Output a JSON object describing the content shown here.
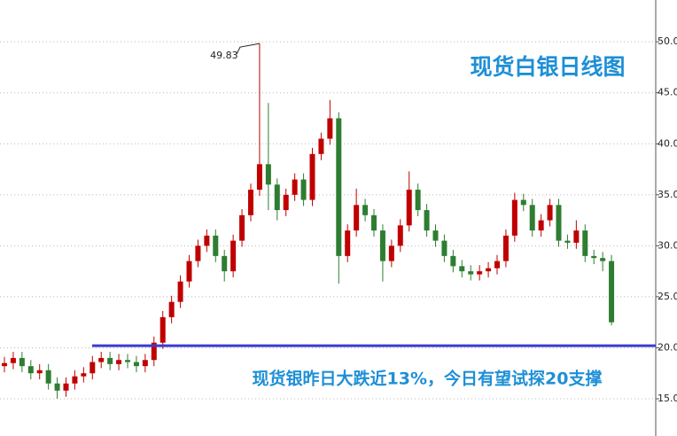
{
  "chart_data": {
    "type": "candlestick",
    "title": "现货白银日线图",
    "subtitle": "现货银昨日大跌近13%，今日有望试探20支撑",
    "peak_label": "49.83",
    "up_color": "#c00000",
    "down_color": "#2e7d32",
    "grid": true,
    "ylim": [
      11.35,
      54.1
    ],
    "yticks": [
      {
        "value": 15,
        "label": "15.0"
      },
      {
        "value": 20,
        "label": "20.0"
      },
      {
        "value": 25,
        "label": "25.0"
      },
      {
        "value": 30,
        "label": "30.0"
      },
      {
        "value": 35,
        "label": "35.0"
      },
      {
        "value": 40,
        "label": "40.0"
      },
      {
        "value": 45,
        "label": "45.0"
      },
      {
        "value": 50,
        "label": "50.0"
      }
    ],
    "support_line": {
      "value": 20.2,
      "color": "#3a3ad0"
    },
    "open": [
      18.2,
      18.5,
      19,
      18.2,
      17.5,
      17.8,
      16.5,
      15.8,
      16.5,
      17.2,
      17.5,
      18.6,
      19,
      18.4,
      18.8,
      18.6,
      18.2,
      18.8,
      20.5,
      23,
      24.5,
      26.5,
      28.5,
      30,
      31,
      29,
      27.5,
      30.5,
      33,
      35.5,
      38,
      36,
      33.5,
      35,
      36.5,
      34.5,
      39,
      40.5,
      42.5,
      29,
      31.5,
      34,
      33,
      31.5,
      28.5,
      30,
      32,
      35.5,
      33.5,
      31.5,
      30.5,
      29,
      28,
      27.5,
      27.2,
      27.5,
      27.8,
      28.5,
      31,
      34.5,
      34,
      31.5,
      32.5,
      34,
      30.5,
      30.3,
      31.5,
      29,
      28.8,
      28.5
    ],
    "high": [
      19.1,
      19.6,
      19.6,
      18.8,
      18.4,
      18.4,
      17.1,
      17.1,
      17.8,
      18.1,
      19.2,
      19.6,
      19.6,
      19.4,
      19.4,
      19.2,
      19.4,
      21.1,
      23.6,
      25.1,
      27.1,
      29.1,
      30.6,
      31.6,
      31.6,
      29.6,
      31.1,
      33.6,
      36.1,
      49.83,
      44.0,
      36.6,
      35.6,
      37.1,
      37.1,
      39.6,
      41.1,
      44.3,
      43.1,
      32.1,
      35.6,
      34.6,
      33.6,
      32.1,
      30.6,
      32.6,
      37.3,
      36.1,
      34.1,
      32.1,
      31.1,
      29.6,
      28.6,
      28.1,
      28.1,
      28.4,
      29.1,
      31.6,
      35.2,
      35.1,
      34.6,
      33.1,
      34.6,
      34.6,
      31.1,
      32.5,
      32.1,
      29.6,
      29.4,
      29.1
    ],
    "low": [
      17.6,
      17.9,
      17.6,
      16.9,
      16.9,
      15.9,
      15.0,
      15.2,
      15.9,
      16.6,
      16.9,
      18.0,
      17.8,
      17.8,
      18.0,
      17.6,
      17.6,
      18.2,
      19.9,
      22.4,
      23.9,
      25.9,
      27.9,
      29.4,
      28.4,
      26.5,
      26.9,
      29.9,
      32.4,
      34.9,
      33.5,
      32.5,
      32.9,
      34.4,
      33.9,
      33.9,
      38.4,
      39.9,
      26.3,
      28.4,
      30.9,
      32.4,
      30.9,
      26.5,
      27.9,
      29.4,
      31.4,
      32.9,
      30.9,
      29.9,
      28.4,
      27.4,
      26.9,
      26.6,
      26.6,
      26.9,
      27.2,
      27.9,
      30.4,
      33.4,
      30.9,
      30.9,
      31.9,
      29.9,
      29.7,
      29.7,
      28.4,
      28.2,
      27.5,
      22.2
    ],
    "close": [
      18.5,
      19,
      18.2,
      17.5,
      17.8,
      16.5,
      15.8,
      16.5,
      17.2,
      17.5,
      18.6,
      19,
      18.4,
      18.8,
      18.6,
      18.2,
      18.8,
      20.5,
      23,
      24.5,
      26.5,
      28.5,
      30,
      31,
      29,
      27.5,
      30.5,
      33,
      35.5,
      38,
      36,
      33.5,
      35,
      36.5,
      34.5,
      39,
      40.5,
      42.5,
      29,
      31.5,
      34,
      33,
      31.5,
      28.5,
      30,
      32,
      35.5,
      33.5,
      31.5,
      30.5,
      29,
      28,
      27.5,
      27.2,
      27.5,
      27.8,
      28.5,
      31,
      34.5,
      34,
      31.5,
      32.5,
      34,
      30.5,
      30.3,
      31.5,
      29,
      28.8,
      28.5,
      22.5
    ]
  }
}
